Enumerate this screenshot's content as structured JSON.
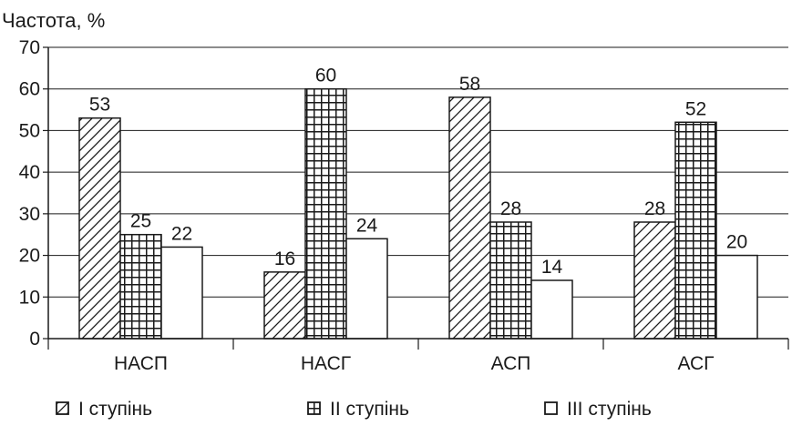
{
  "chart_data": {
    "type": "bar",
    "title": "",
    "xlabel": "",
    "ylabel": "Частота, %",
    "ylim": [
      0,
      70
    ],
    "yticks": [
      0,
      10,
      20,
      30,
      40,
      50,
      60,
      70
    ],
    "grid": true,
    "legend_position": "bottom",
    "categories": [
      "НАСП",
      "НАСГ",
      "АСП",
      "АСГ"
    ],
    "series": [
      {
        "name": "I ступінь",
        "pattern": "diagonal-hatch",
        "values": [
          53,
          16,
          58,
          28
        ]
      },
      {
        "name": "II ступінь",
        "pattern": "crosshatch-grid",
        "values": [
          25,
          60,
          28,
          52
        ]
      },
      {
        "name": "III ступінь",
        "pattern": "solid-white",
        "values": [
          22,
          24,
          14,
          20
        ]
      }
    ]
  },
  "colors": {
    "stroke": "#1a1a1a",
    "background": "#ffffff",
    "fill": "#ffffff"
  }
}
